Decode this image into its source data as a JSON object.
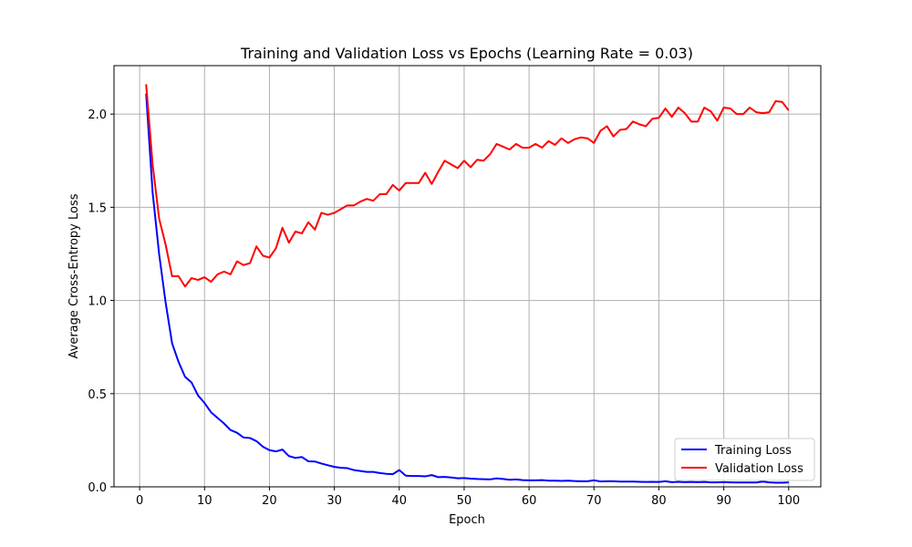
{
  "chart_data": {
    "type": "line",
    "title": "Training and Validation Loss vs Epochs (Learning Rate = 0.03)",
    "xlabel": "Epoch",
    "ylabel": "Average Cross-Entropy Loss",
    "xlim": [
      -3.95,
      104.95
    ],
    "ylim": [
      0,
      2.26
    ],
    "xticks": [
      0,
      10,
      20,
      30,
      40,
      50,
      60,
      70,
      80,
      90,
      100
    ],
    "xtick_labels": [
      "0",
      "10",
      "20",
      "30",
      "40",
      "50",
      "60",
      "70",
      "80",
      "90",
      "100"
    ],
    "yticks": [
      0,
      0.5,
      1.0,
      1.5,
      2.0
    ],
    "ytick_labels": [
      "0.0",
      "0.5",
      "1.0",
      "1.5",
      "2.0"
    ],
    "grid": true,
    "legend_position": "lower-right",
    "x": [
      1,
      2,
      3,
      4,
      5,
      6,
      7,
      8,
      9,
      10,
      11,
      12,
      13,
      14,
      15,
      16,
      17,
      18,
      19,
      20,
      21,
      22,
      23,
      24,
      25,
      26,
      27,
      28,
      29,
      30,
      31,
      32,
      33,
      34,
      35,
      36,
      37,
      38,
      39,
      40,
      41,
      42,
      43,
      44,
      45,
      46,
      47,
      48,
      49,
      50,
      51,
      52,
      53,
      54,
      55,
      56,
      57,
      58,
      59,
      60,
      61,
      62,
      63,
      64,
      65,
      66,
      67,
      68,
      69,
      70,
      71,
      72,
      73,
      74,
      75,
      76,
      77,
      78,
      79,
      80,
      81,
      82,
      83,
      84,
      85,
      86,
      87,
      88,
      89,
      90,
      91,
      92,
      93,
      94,
      95,
      96,
      97,
      98,
      99,
      100
    ],
    "series": [
      {
        "name": "Training Loss",
        "color": "#0000ff",
        "values": [
          2.11,
          1.58,
          1.25,
          0.99,
          0.77,
          0.67,
          0.59,
          0.56,
          0.49,
          0.45,
          0.4,
          0.37,
          0.34,
          0.305,
          0.29,
          0.265,
          0.262,
          0.245,
          0.215,
          0.197,
          0.19,
          0.2,
          0.165,
          0.155,
          0.16,
          0.137,
          0.136,
          0.125,
          0.116,
          0.107,
          0.102,
          0.1,
          0.09,
          0.085,
          0.08,
          0.08,
          0.074,
          0.07,
          0.068,
          0.09,
          0.06,
          0.058,
          0.058,
          0.056,
          0.063,
          0.052,
          0.053,
          0.05,
          0.046,
          0.047,
          0.044,
          0.042,
          0.041,
          0.04,
          0.045,
          0.042,
          0.038,
          0.04,
          0.036,
          0.035,
          0.035,
          0.036,
          0.033,
          0.033,
          0.032,
          0.033,
          0.031,
          0.03,
          0.03,
          0.035,
          0.029,
          0.03,
          0.03,
          0.028,
          0.028,
          0.028,
          0.027,
          0.026,
          0.027,
          0.026,
          0.03,
          0.025,
          0.027,
          0.025,
          0.026,
          0.025,
          0.026,
          0.024,
          0.024,
          0.025,
          0.024,
          0.023,
          0.023,
          0.023,
          0.023,
          0.028,
          0.024,
          0.022,
          0.022,
          0.024
        ]
      },
      {
        "name": "Validation Loss",
        "color": "#ff0000",
        "values": [
          2.16,
          1.73,
          1.44,
          1.3,
          1.13,
          1.13,
          1.075,
          1.12,
          1.11,
          1.125,
          1.1,
          1.14,
          1.155,
          1.14,
          1.21,
          1.19,
          1.2,
          1.29,
          1.24,
          1.23,
          1.28,
          1.39,
          1.31,
          1.37,
          1.36,
          1.42,
          1.38,
          1.47,
          1.46,
          1.47,
          1.49,
          1.51,
          1.51,
          1.53,
          1.545,
          1.535,
          1.57,
          1.57,
          1.62,
          1.59,
          1.63,
          1.63,
          1.63,
          1.685,
          1.625,
          1.69,
          1.75,
          1.73,
          1.71,
          1.75,
          1.715,
          1.755,
          1.75,
          1.785,
          1.84,
          1.825,
          1.81,
          1.84,
          1.82,
          1.82,
          1.84,
          1.82,
          1.855,
          1.835,
          1.87,
          1.845,
          1.865,
          1.875,
          1.87,
          1.845,
          1.91,
          1.935,
          1.88,
          1.915,
          1.92,
          1.96,
          1.945,
          1.935,
          1.975,
          1.98,
          2.03,
          1.985,
          2.035,
          2.005,
          1.96,
          1.96,
          2.035,
          2.015,
          1.965,
          2.035,
          2.03,
          2.0,
          2.0,
          2.035,
          2.01,
          2.005,
          2.01,
          2.07,
          2.065,
          2.02
        ]
      }
    ]
  }
}
